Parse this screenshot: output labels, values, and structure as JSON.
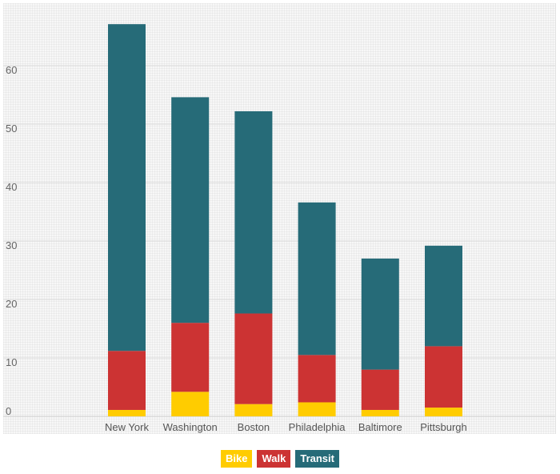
{
  "chart_data": {
    "type": "bar",
    "stacked": true,
    "categories": [
      "New  York",
      "Washington",
      "Boston",
      "Philadelphia",
      "Baltimore",
      "Pittsburgh"
    ],
    "series": [
      {
        "name": "Bike",
        "color": "#ffcc00",
        "values": [
          1.1,
          4.2,
          2.1,
          2.4,
          1.1,
          1.5
        ]
      },
      {
        "name": "Walk",
        "color": "#cc3333",
        "values": [
          10.1,
          11.8,
          15.5,
          8.1,
          6.9,
          10.5
        ]
      },
      {
        "name": "Transit",
        "color": "#266b78",
        "values": [
          55.9,
          38.6,
          34.6,
          26.1,
          19.0,
          17.2
        ]
      }
    ],
    "yticks": [
      "0",
      "10",
      "20",
      "30",
      "40",
      "50",
      "60"
    ],
    "ylim": [
      0,
      70
    ],
    "grid": true,
    "legend_position": "bottom-center"
  }
}
